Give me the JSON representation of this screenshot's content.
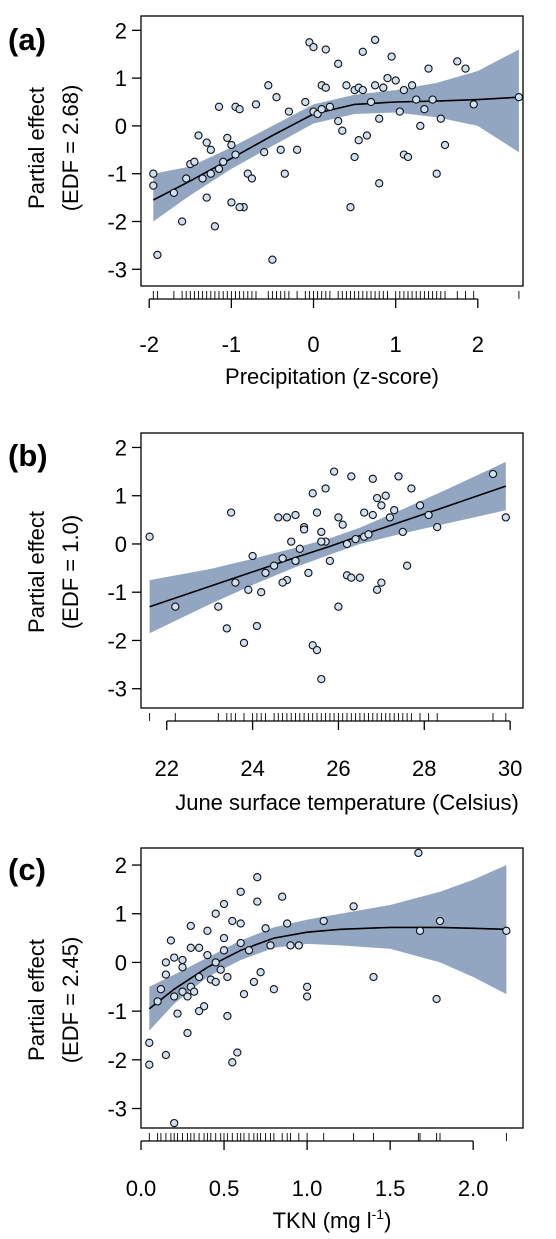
{
  "chart_data": [
    {
      "type": "scatter",
      "panel_label": "(a)",
      "xlabel": "Precipitation (z-score)",
      "xlabel_sup": "",
      "xlabel_end": "",
      "ylabel_line1": "Partial effect",
      "ylabel_line2": "(EDF = 2.68)",
      "xlim": [
        -2.1,
        2.55
      ],
      "ylim": [
        -3.35,
        2.3
      ],
      "xticks": [
        -2,
        -1,
        0,
        1,
        2
      ],
      "xtick_labels": [
        "-2",
        "-1",
        "0",
        "1",
        "2"
      ],
      "yticks": [
        -3,
        -2,
        -1,
        0,
        1,
        2
      ],
      "ytick_labels": [
        "-3",
        "-2",
        "-1",
        "0",
        "1",
        "2"
      ],
      "smooth": {
        "x": [
          -1.95,
          -1.5,
          -1.0,
          -0.5,
          0.0,
          0.5,
          1.0,
          1.5,
          2.0,
          2.5
        ],
        "fit": [
          -1.55,
          -1.15,
          -0.68,
          -0.2,
          0.25,
          0.45,
          0.5,
          0.52,
          0.55,
          0.6
        ],
        "lower": [
          -2.0,
          -1.45,
          -0.9,
          -0.42,
          0.05,
          0.25,
          0.28,
          0.18,
          0.0,
          -0.55
        ],
        "upper": [
          -1.0,
          -0.85,
          -0.45,
          0.0,
          0.45,
          0.65,
          0.75,
          0.9,
          1.15,
          1.6
        ]
      },
      "points": {
        "x": [
          -1.95,
          -1.95,
          -1.9,
          -1.7,
          -1.6,
          -1.55,
          -1.5,
          -1.45,
          -1.4,
          -1.35,
          -1.3,
          -1.25,
          -1.25,
          -1.2,
          -1.15,
          -1.1,
          -1.05,
          -1.0,
          -1.0,
          -0.95,
          -0.95,
          -0.9,
          -0.85,
          -0.8,
          -0.75,
          -0.7,
          -0.55,
          -0.5,
          -0.45,
          -0.4,
          -0.35,
          -0.3,
          -0.2,
          -0.1,
          -0.05,
          0.0,
          0.0,
          0.05,
          0.1,
          0.15,
          0.15,
          0.2,
          0.3,
          0.3,
          0.35,
          0.4,
          0.45,
          0.5,
          0.5,
          0.55,
          0.55,
          0.6,
          0.65,
          0.7,
          0.75,
          0.75,
          0.8,
          0.8,
          0.85,
          0.9,
          1.0,
          1.05,
          1.1,
          1.15,
          1.2,
          1.25,
          1.3,
          1.35,
          1.4,
          1.45,
          1.5,
          1.55,
          1.6,
          1.75,
          1.85,
          1.95,
          2.5,
          -0.9,
          -1.3,
          -1.15,
          0.6,
          0.1,
          0.95,
          -0.6,
          1.1
        ],
        "y": [
          -1.0,
          -1.25,
          -2.7,
          -1.4,
          -2.0,
          -1.1,
          -0.8,
          -0.75,
          -0.2,
          -1.1,
          -0.35,
          -0.5,
          -1.0,
          -2.1,
          -0.9,
          -0.75,
          -0.25,
          -0.4,
          -1.6,
          -0.6,
          0.4,
          0.35,
          -1.7,
          -1.0,
          -1.1,
          0.45,
          0.85,
          -2.8,
          0.6,
          -0.5,
          -1.0,
          0.3,
          -0.5,
          0.5,
          1.75,
          0.3,
          1.65,
          0.25,
          0.85,
          1.6,
          0.8,
          0.4,
          1.3,
          0.1,
          -0.1,
          0.85,
          -1.7,
          -0.65,
          0.75,
          0.8,
          -0.3,
          1.55,
          -0.2,
          0.5,
          1.8,
          0.85,
          -1.2,
          0.15,
          0.8,
          1.0,
          0.95,
          0.3,
          -0.6,
          -0.65,
          0.85,
          0.55,
          0.0,
          0.35,
          1.2,
          0.55,
          -1.0,
          0.15,
          -0.4,
          1.35,
          1.2,
          0.45,
          0.6,
          -1.7,
          -1.5,
          0.4,
          0.75,
          0.35,
          1.45,
          -0.55,
          0.75
        ]
      },
      "rug_x": [
        -1.95,
        -1.9,
        -1.7,
        -1.6,
        -1.55,
        -1.5,
        -1.45,
        -1.4,
        -1.35,
        -1.3,
        -1.25,
        -1.2,
        -1.15,
        -1.1,
        -1.05,
        -1.0,
        -0.95,
        -0.9,
        -0.85,
        -0.8,
        -0.75,
        -0.7,
        -0.55,
        -0.5,
        -0.45,
        -0.4,
        -0.35,
        -0.3,
        -0.2,
        -0.1,
        -0.05,
        0.0,
        0.05,
        0.1,
        0.15,
        0.2,
        0.3,
        0.35,
        0.4,
        0.45,
        0.5,
        0.55,
        0.6,
        0.65,
        0.7,
        0.75,
        0.8,
        0.85,
        0.9,
        1.0,
        1.05,
        1.1,
        1.15,
        1.2,
        1.25,
        1.3,
        1.35,
        1.4,
        1.45,
        1.5,
        1.55,
        1.6,
        1.75,
        1.85,
        1.95,
        2.5
      ]
    },
    {
      "type": "scatter",
      "panel_label": "(b)",
      "xlabel": "June surface temperature (Celsius)",
      "xlabel_sup": "",
      "xlabel_end": "",
      "ylabel_line1": "Partial effect",
      "ylabel_line2": "(EDF = 1.0)",
      "xlim": [
        21.4,
        30.3
      ],
      "ylim": [
        -3.4,
        2.3
      ],
      "xticks": [
        22,
        24,
        26,
        28,
        30
      ],
      "xtick_labels": [
        "22",
        "24",
        "26",
        "28",
        "30"
      ],
      "yticks": [
        -3,
        -2,
        -1,
        0,
        1,
        2
      ],
      "ytick_labels": [
        "-3",
        "-2",
        "-1",
        "0",
        "1",
        "2"
      ],
      "smooth": {
        "x": [
          21.6,
          23.0,
          24.0,
          25.0,
          25.8,
          26.5,
          27.5,
          28.5,
          29.9
        ],
        "fit": [
          -1.3,
          -0.88,
          -0.58,
          -0.28,
          -0.05,
          0.17,
          0.47,
          0.77,
          1.2
        ],
        "lower": [
          -1.85,
          -1.25,
          -0.85,
          -0.48,
          -0.22,
          0.0,
          0.22,
          0.42,
          0.7
        ],
        "upper": [
          -0.75,
          -0.52,
          -0.31,
          -0.08,
          0.12,
          0.34,
          0.72,
          1.12,
          1.7
        ]
      },
      "points": {
        "x": [
          21.6,
          22.2,
          23.2,
          23.4,
          23.5,
          23.6,
          23.8,
          24.0,
          24.1,
          24.2,
          24.3,
          24.5,
          24.6,
          24.7,
          24.8,
          24.9,
          25.0,
          25.0,
          25.1,
          25.2,
          25.3,
          25.4,
          25.4,
          25.5,
          25.5,
          25.6,
          25.6,
          25.7,
          25.7,
          25.8,
          25.9,
          26.0,
          26.0,
          26.1,
          26.2,
          26.2,
          26.3,
          26.4,
          26.5,
          26.6,
          26.7,
          26.8,
          26.8,
          26.9,
          27.0,
          27.0,
          27.1,
          27.2,
          27.3,
          27.4,
          27.5,
          27.6,
          27.7,
          27.9,
          28.1,
          28.3,
          29.6,
          29.9,
          24.7,
          25.2,
          25.6,
          26.3,
          26.9,
          24.8,
          23.9,
          26.6
        ],
        "y": [
          0.15,
          -1.3,
          -1.3,
          -1.75,
          0.65,
          -0.8,
          -2.05,
          -0.25,
          -1.7,
          -1.0,
          -0.6,
          -0.45,
          0.55,
          -0.3,
          -0.75,
          0.05,
          -0.35,
          0.6,
          -0.1,
          0.35,
          -0.6,
          1.05,
          -2.1,
          0.65,
          -2.2,
          0.25,
          -2.8,
          1.15,
          0.05,
          -0.35,
          1.5,
          0.55,
          -1.3,
          0.4,
          0.0,
          -0.65,
          1.4,
          0.1,
          -0.7,
          0.15,
          0.2,
          1.35,
          0.6,
          -0.95,
          0.8,
          -0.8,
          1.0,
          0.55,
          0.7,
          1.4,
          0.25,
          -0.45,
          1.15,
          0.8,
          0.6,
          0.35,
          1.45,
          0.55,
          -0.8,
          0.3,
          0.05,
          -0.7,
          0.95,
          0.55,
          -0.95,
          0.65
        ]
      },
      "rug_x": [
        21.6,
        22.2,
        23.2,
        23.4,
        23.5,
        23.6,
        23.8,
        24.0,
        24.1,
        24.2,
        24.3,
        24.5,
        24.6,
        24.7,
        24.8,
        24.9,
        25.0,
        25.1,
        25.2,
        25.3,
        25.4,
        25.5,
        25.6,
        25.7,
        25.8,
        25.9,
        26.0,
        26.1,
        26.2,
        26.3,
        26.4,
        26.5,
        26.6,
        26.7,
        26.8,
        26.9,
        27.0,
        27.1,
        27.2,
        27.3,
        27.4,
        27.5,
        27.6,
        27.7,
        27.9,
        28.1,
        28.3,
        29.6,
        29.9
      ]
    },
    {
      "type": "scatter",
      "panel_label": "(c)",
      "xlabel": "TKN (mg l",
      "xlabel_sup": "-1",
      "xlabel_end": ")",
      "ylabel_line1": "Partial effect",
      "ylabel_line2": "(EDF = 2.45)",
      "xlim": [
        0.0,
        2.3
      ],
      "ylim": [
        -3.4,
        2.35
      ],
      "xticks": [
        0.0,
        0.5,
        1.0,
        1.5,
        2.0
      ],
      "xtick_labels": [
        "0.0",
        "0.5",
        "1.0",
        "1.5",
        "2.0"
      ],
      "yticks": [
        -3,
        -2,
        -1,
        0,
        1,
        2
      ],
      "ytick_labels": [
        "-3",
        "-2",
        "-1",
        "0",
        "1",
        "2"
      ],
      "smooth": {
        "x": [
          0.05,
          0.2,
          0.4,
          0.6,
          0.8,
          1.0,
          1.2,
          1.5,
          1.8,
          2.0,
          2.2
        ],
        "fit": [
          -0.95,
          -0.55,
          -0.1,
          0.25,
          0.5,
          0.62,
          0.68,
          0.72,
          0.72,
          0.7,
          0.68
        ],
        "lower": [
          -1.4,
          -0.85,
          -0.3,
          0.05,
          0.3,
          0.38,
          0.35,
          0.28,
          0.0,
          -0.3,
          -0.65
        ],
        "upper": [
          -0.5,
          -0.25,
          0.1,
          0.45,
          0.72,
          0.88,
          1.0,
          1.18,
          1.45,
          1.7,
          2.0
        ]
      },
      "points": {
        "x": [
          0.05,
          0.05,
          0.1,
          0.12,
          0.15,
          0.15,
          0.18,
          0.2,
          0.2,
          0.22,
          0.25,
          0.25,
          0.28,
          0.28,
          0.3,
          0.3,
          0.32,
          0.35,
          0.35,
          0.38,
          0.4,
          0.4,
          0.42,
          0.45,
          0.45,
          0.48,
          0.5,
          0.5,
          0.52,
          0.52,
          0.55,
          0.55,
          0.58,
          0.6,
          0.6,
          0.62,
          0.65,
          0.68,
          0.7,
          0.72,
          0.75,
          0.78,
          0.8,
          0.85,
          0.88,
          0.9,
          0.95,
          1.0,
          1.0,
          1.1,
          1.28,
          1.4,
          1.67,
          1.68,
          1.78,
          1.8,
          2.2,
          0.2,
          0.15,
          0.35,
          0.6,
          0.45,
          0.7,
          0.5,
          0.3,
          0.25
        ],
        "y": [
          -1.65,
          -2.1,
          -0.8,
          -0.55,
          0.0,
          -1.9,
          0.45,
          -3.3,
          -0.7,
          -1.05,
          -0.6,
          0.05,
          -1.45,
          -0.7,
          -0.5,
          0.3,
          -0.6,
          0.3,
          -0.3,
          -0.9,
          0.65,
          0.15,
          -0.35,
          0.0,
          -0.4,
          -0.15,
          1.2,
          0.25,
          -1.1,
          -0.3,
          0.85,
          -2.05,
          -1.85,
          1.45,
          0.4,
          -0.65,
          0.25,
          -0.4,
          1.75,
          -0.2,
          0.7,
          0.35,
          -0.55,
          1.35,
          0.8,
          0.35,
          0.35,
          -0.5,
          -0.7,
          0.85,
          1.15,
          -0.3,
          2.25,
          0.65,
          -0.75,
          0.85,
          0.65,
          0.1,
          -0.25,
          -1.0,
          0.8,
          1.0,
          1.25,
          0.5,
          0.75,
          -0.1
        ]
      },
      "rug_x": [
        0.05,
        0.1,
        0.12,
        0.15,
        0.18,
        0.2,
        0.22,
        0.25,
        0.28,
        0.3,
        0.32,
        0.35,
        0.38,
        0.4,
        0.42,
        0.45,
        0.48,
        0.5,
        0.52,
        0.55,
        0.58,
        0.6,
        0.62,
        0.65,
        0.68,
        0.7,
        0.72,
        0.75,
        0.78,
        0.8,
        0.85,
        0.88,
        0.9,
        0.95,
        1.0,
        1.1,
        1.28,
        1.4,
        1.67,
        1.68,
        1.78,
        1.8,
        2.2
      ]
    }
  ],
  "colors": {
    "band": "#7f97b7",
    "point_fill": "#cfe0f2",
    "point_stroke": "#111111",
    "line": "#000000"
  }
}
